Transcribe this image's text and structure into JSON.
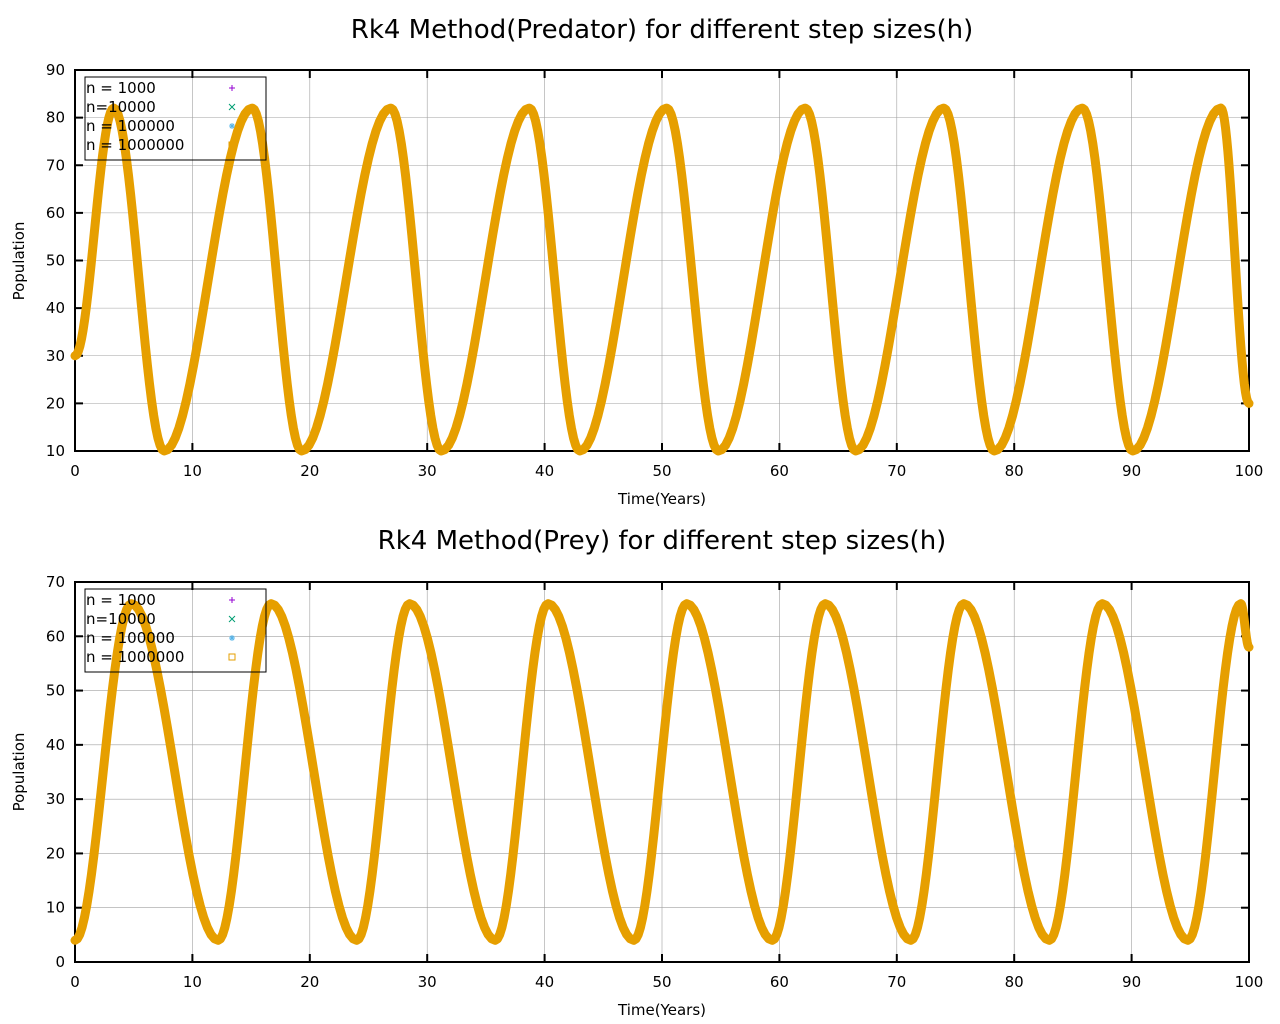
{
  "chart_data": [
    {
      "type": "line",
      "title": "Rk4 Method(Predator) for different step sizes(h)",
      "xlabel": "Time(Years)",
      "ylabel": "Population",
      "xlim": [
        0,
        100
      ],
      "ylim": [
        10,
        90
      ],
      "xticks": [
        0,
        10,
        20,
        30,
        40,
        50,
        60,
        70,
        80,
        90,
        100
      ],
      "yticks": [
        10,
        20,
        30,
        40,
        50,
        60,
        70,
        80,
        90
      ],
      "grid": true,
      "legend_position": "top-left",
      "x": [
        0,
        3.3,
        7.6,
        15.1,
        19.3,
        26.9,
        31.2,
        38.7,
        43.0,
        50.4,
        54.8,
        62.2,
        66.5,
        74.0,
        78.3,
        85.8,
        90.1,
        97.6,
        100
      ],
      "series": [
        {
          "name": "n = 1000",
          "color": "#9400d3",
          "marker": "plus",
          "values": [
            30,
            82,
            10,
            82,
            10,
            82,
            10,
            82,
            10,
            82,
            10,
            82,
            10,
            82,
            10,
            82,
            10,
            82,
            20
          ]
        },
        {
          "name": "n=10000",
          "color": "#009e73",
          "marker": "cross",
          "values": [
            30,
            82,
            10,
            82,
            10,
            82,
            10,
            82,
            10,
            82,
            10,
            82,
            10,
            82,
            10,
            82,
            10,
            82,
            20
          ]
        },
        {
          "name": "n = 100000",
          "color": "#56b4e9",
          "marker": "star",
          "values": [
            30,
            82,
            10,
            82,
            10,
            82,
            10,
            82,
            10,
            82,
            10,
            82,
            10,
            82,
            10,
            82,
            10,
            82,
            20
          ]
        },
        {
          "name": "n = 1000000",
          "color": "#e69f00",
          "marker": "square",
          "values": [
            30,
            82,
            10,
            82,
            10,
            82,
            10,
            82,
            10,
            82,
            10,
            82,
            10,
            82,
            10,
            82,
            10,
            82,
            20
          ]
        }
      ]
    },
    {
      "type": "line",
      "title": "Rk4 Method(Prey) for different step sizes(h)",
      "xlabel": "Time(Years)",
      "ylabel": "Population",
      "xlim": [
        0,
        100
      ],
      "ylim": [
        0,
        70
      ],
      "xticks": [
        0,
        10,
        20,
        30,
        40,
        50,
        60,
        70,
        80,
        90,
        100
      ],
      "yticks": [
        0,
        10,
        20,
        30,
        40,
        50,
        60,
        70
      ],
      "grid": true,
      "legend_position": "top-left",
      "x": [
        0,
        4.8,
        12.2,
        16.7,
        24.0,
        28.5,
        35.8,
        40.3,
        47.6,
        52.1,
        59.4,
        63.9,
        71.2,
        75.7,
        83.0,
        87.5,
        94.8,
        99.3,
        100
      ],
      "series": [
        {
          "name": "n = 1000",
          "color": "#9400d3",
          "marker": "plus",
          "values": [
            4,
            66,
            4,
            66,
            4,
            66,
            4,
            66,
            4,
            66,
            4,
            66,
            4,
            66,
            4,
            66,
            4,
            66,
            58
          ]
        },
        {
          "name": "n=10000",
          "color": "#009e73",
          "marker": "cross",
          "values": [
            4,
            66,
            4,
            66,
            4,
            66,
            4,
            66,
            4,
            66,
            4,
            66,
            4,
            66,
            4,
            66,
            4,
            66,
            58
          ]
        },
        {
          "name": "n = 100000",
          "color": "#56b4e9",
          "marker": "star",
          "values": [
            4,
            66,
            4,
            66,
            4,
            66,
            4,
            66,
            4,
            66,
            4,
            66,
            4,
            66,
            4,
            66,
            4,
            66,
            58
          ]
        },
        {
          "name": "n = 1000000",
          "color": "#e69f00",
          "marker": "square",
          "values": [
            4,
            66,
            4,
            66,
            4,
            66,
            4,
            66,
            4,
            66,
            4,
            66,
            4,
            66,
            4,
            66,
            4,
            66,
            58
          ]
        }
      ]
    }
  ]
}
